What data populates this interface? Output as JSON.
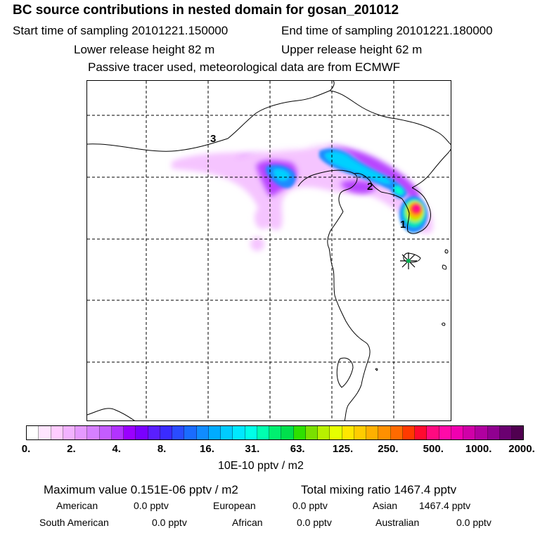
{
  "header": {
    "title": "BC  source contributions in nested domain for gosan_201012",
    "start_label": "Start time of sampling 20101221.150000",
    "end_label": "End time of sampling 20101221.180000",
    "lower_label": "Lower release height   82 m",
    "upper_label": "Upper release height   62 m",
    "note": "Passive tracer used, meteorological data are from ECMWF"
  },
  "map": {
    "region_labels": [
      "3",
      "2",
      "1"
    ],
    "receptor_marker": "star-icon"
  },
  "colorbar": {
    "tick_labels": [
      "0.",
      "2.",
      "4.",
      "8.",
      "16.",
      "31.",
      "63.",
      "125.",
      "250.",
      "500.",
      "1000.",
      "2000."
    ],
    "units": "10E-10 pptv / m2",
    "colors": [
      "#ffffff",
      "#ffe5ff",
      "#ffccff",
      "#f2b2ff",
      "#e599ff",
      "#d680ff",
      "#c45cff",
      "#b233ff",
      "#9a00ff",
      "#7a00ff",
      "#5a1fff",
      "#3a2bff",
      "#2a4cff",
      "#1a6cff",
      "#108cff",
      "#00acff",
      "#00ccff",
      "#00e8ff",
      "#00ffe8",
      "#00ffb0",
      "#00f070",
      "#00e04c",
      "#2ee000",
      "#7ae000",
      "#b8f000",
      "#e6ff00",
      "#ffe600",
      "#ffcc00",
      "#ffb000",
      "#ff9000",
      "#ff6a00",
      "#ff3a00",
      "#ff0a30",
      "#ff0a80",
      "#ff0aa8",
      "#f000b0",
      "#d000a8",
      "#b000a0",
      "#900090",
      "#6a0070",
      "#500050"
    ]
  },
  "stats": {
    "maximum": "Maximum value  0.151E-06 pptv / m2",
    "total": "Total mixing ratio     1467.4 pptv",
    "rows": [
      [
        {
          "name": "American",
          "value": "0.0 pptv"
        },
        {
          "name": "European",
          "value": "0.0 pptv"
        },
        {
          "name": "Asian",
          "value": "1467.4 pptv"
        }
      ],
      [
        {
          "name": "South American",
          "value": "0.0 pptv"
        },
        {
          "name": "African",
          "value": "0.0 pptv"
        },
        {
          "name": "Australian",
          "value": "0.0 pptv"
        }
      ]
    ]
  }
}
